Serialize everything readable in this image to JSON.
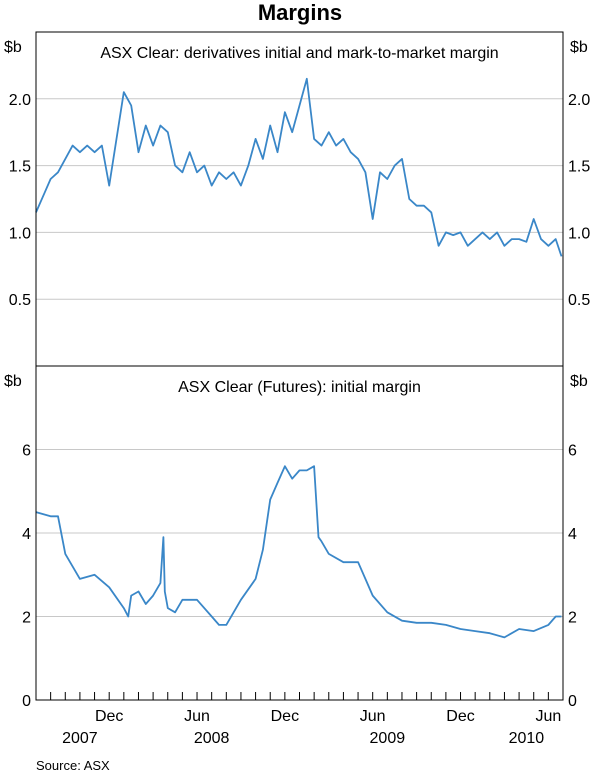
{
  "title": "Margins",
  "source": "Source: ASX",
  "colors": {
    "line": "#3a87c8",
    "grid": "#c8c8c8",
    "frame": "#000000"
  },
  "x_axis": {
    "month_labels": [
      "Dec",
      "Jun",
      "Dec",
      "Jun",
      "Dec",
      "Jun"
    ],
    "year_labels": [
      "2007",
      "2008",
      "2009",
      "2010"
    ]
  },
  "chart_data": [
    {
      "type": "line",
      "title": "ASX Clear: derivatives initial and mark-to-market margin",
      "ylabel": "$b",
      "ylim": [
        0,
        2.5
      ],
      "yticks": [
        "0.5",
        "1.0",
        "1.5",
        "2.0"
      ],
      "x_range": [
        "2007-07",
        "2010-06"
      ],
      "series": [
        {
          "name": "derivatives initial and mark-to-market margin",
          "x": [
            0,
            0.6,
            1,
            1.5,
            2,
            2.5,
            3,
            3.5,
            4,
            4.5,
            5,
            5.5,
            6,
            6.5,
            7,
            7.5,
            8,
            8.5,
            9,
            9.5,
            10,
            10.5,
            11,
            11.5,
            12,
            12.5,
            13,
            13.5,
            14,
            14.5,
            15,
            15.5,
            16,
            16.5,
            17,
            17.5,
            18,
            18.5,
            19,
            19.5,
            20,
            20.5,
            21,
            21.5,
            22,
            22.5,
            23,
            23.5,
            24,
            24.5,
            25,
            25.5,
            26,
            26.5,
            27,
            27.5,
            28,
            28.5,
            29,
            29.5,
            30,
            30.5,
            31,
            31.5,
            32,
            32.5,
            33,
            33.5,
            34,
            34.5,
            35,
            35.5,
            35.9
          ],
          "values": [
            1.15,
            1.3,
            1.4,
            1.45,
            1.55,
            1.65,
            1.6,
            1.65,
            1.6,
            1.65,
            1.35,
            1.7,
            2.05,
            1.95,
            1.6,
            1.8,
            1.65,
            1.8,
            1.75,
            1.5,
            1.45,
            1.6,
            1.45,
            1.5,
            1.35,
            1.45,
            1.4,
            1.45,
            1.35,
            1.5,
            1.7,
            1.55,
            1.8,
            1.6,
            1.9,
            1.75,
            1.95,
            2.15,
            1.7,
            1.65,
            1.75,
            1.65,
            1.7,
            1.6,
            1.55,
            1.45,
            1.1,
            1.45,
            1.4,
            1.5,
            1.55,
            1.25,
            1.2,
            1.2,
            1.15,
            0.9,
            1.0,
            0.98,
            1.0,
            0.9,
            0.95,
            1.0,
            0.95,
            1.0,
            0.9,
            0.95,
            0.95,
            0.93,
            1.1,
            0.95,
            0.9,
            0.95,
            0.82
          ]
        }
      ]
    },
    {
      "type": "line",
      "title": "ASX Clear (Futures): initial margin",
      "ylabel": "$b",
      "ylim": [
        0,
        8
      ],
      "yticks": [
        "0",
        "2",
        "4",
        "6"
      ],
      "x_range": [
        "2007-07",
        "2010-06"
      ],
      "series": [
        {
          "name": "initial margin",
          "x": [
            0,
            1,
            1.5,
            2,
            2.5,
            3,
            4,
            5,
            6,
            6.3,
            6.5,
            7,
            7.5,
            8,
            8.5,
            8.7,
            8.8,
            9,
            9.5,
            10,
            11,
            12,
            12.5,
            13,
            14,
            15,
            15.5,
            16,
            16.5,
            17,
            17.5,
            18,
            18.5,
            19,
            19.3,
            19.5,
            20,
            21,
            22,
            22.5,
            23,
            24,
            25,
            26,
            27,
            28,
            29,
            30,
            31,
            32,
            33,
            34,
            35,
            35.5,
            35.9
          ],
          "values": [
            4.5,
            4.4,
            4.4,
            3.5,
            3.2,
            2.9,
            3.0,
            2.7,
            2.2,
            2.0,
            2.5,
            2.6,
            2.3,
            2.5,
            2.8,
            3.9,
            2.6,
            2.2,
            2.1,
            2.4,
            2.4,
            2.0,
            1.8,
            1.8,
            2.4,
            2.9,
            3.6,
            4.8,
            5.2,
            5.6,
            5.3,
            5.5,
            5.5,
            5.6,
            3.9,
            3.8,
            3.5,
            3.3,
            3.3,
            2.9,
            2.5,
            2.1,
            1.9,
            1.85,
            1.85,
            1.8,
            1.7,
            1.65,
            1.6,
            1.5,
            1.7,
            1.65,
            1.8,
            2.0,
            2.0
          ]
        }
      ]
    }
  ]
}
